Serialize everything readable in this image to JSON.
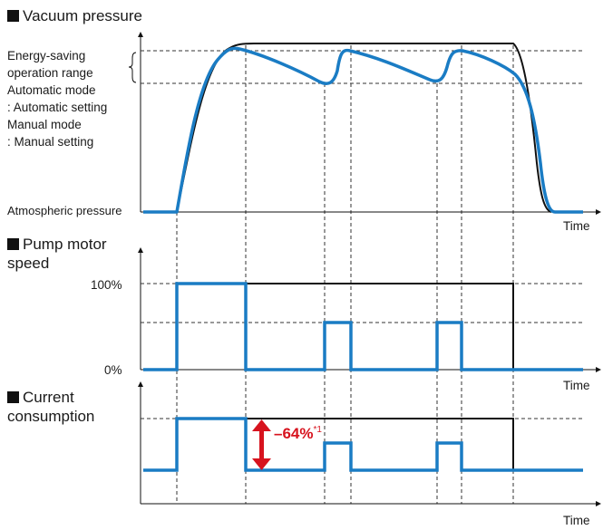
{
  "vacuum": {
    "title": "Vacuum pressure",
    "esor_1": "Energy-saving",
    "esor_2": "operation range",
    "auto_1": "Automatic mode",
    "auto_2": ": Automatic setting",
    "man_1": "Manual mode",
    "man_2": ": Manual setting",
    "atm": "Atmospheric pressure",
    "time": "Time"
  },
  "motor": {
    "title_1": "Pump motor",
    "title_2": "speed",
    "y100": "100%",
    "y0": "0%",
    "time": "Time"
  },
  "current": {
    "title_1": "Current",
    "title_2": "consumption",
    "reduction": "–64%",
    "footnote": "*1",
    "time": "Time"
  },
  "colors": {
    "energy_saving": "#1a7cc4",
    "conventional": "#111111",
    "reduction_arrow": "#d7131e"
  }
}
